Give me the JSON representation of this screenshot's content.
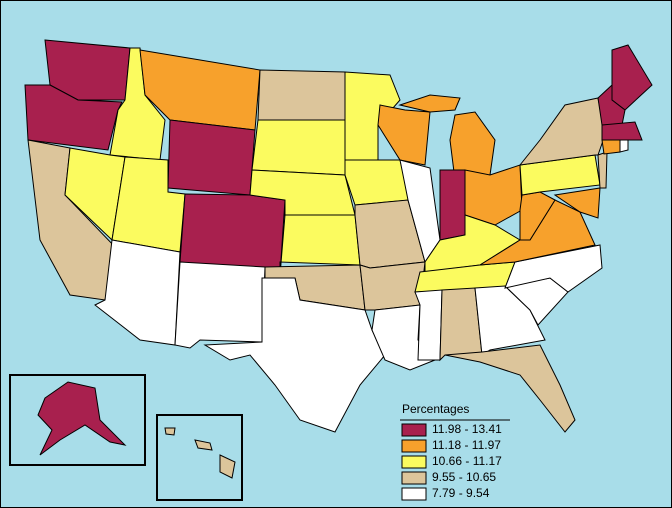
{
  "legend": {
    "title": "Percentages",
    "items": [
      {
        "label": "11.98 - 13.41",
        "color": "#a8204e"
      },
      {
        "label": "11.18 - 11.97",
        "color": "#f7a12c"
      },
      {
        "label": "10.66 - 11.17",
        "color": "#fbfb5f"
      },
      {
        "label": "9.55 - 10.65",
        "color": "#dcc59b"
      },
      {
        "label": "7.79 - 9.54",
        "color": "#ffffff"
      }
    ]
  }
}
